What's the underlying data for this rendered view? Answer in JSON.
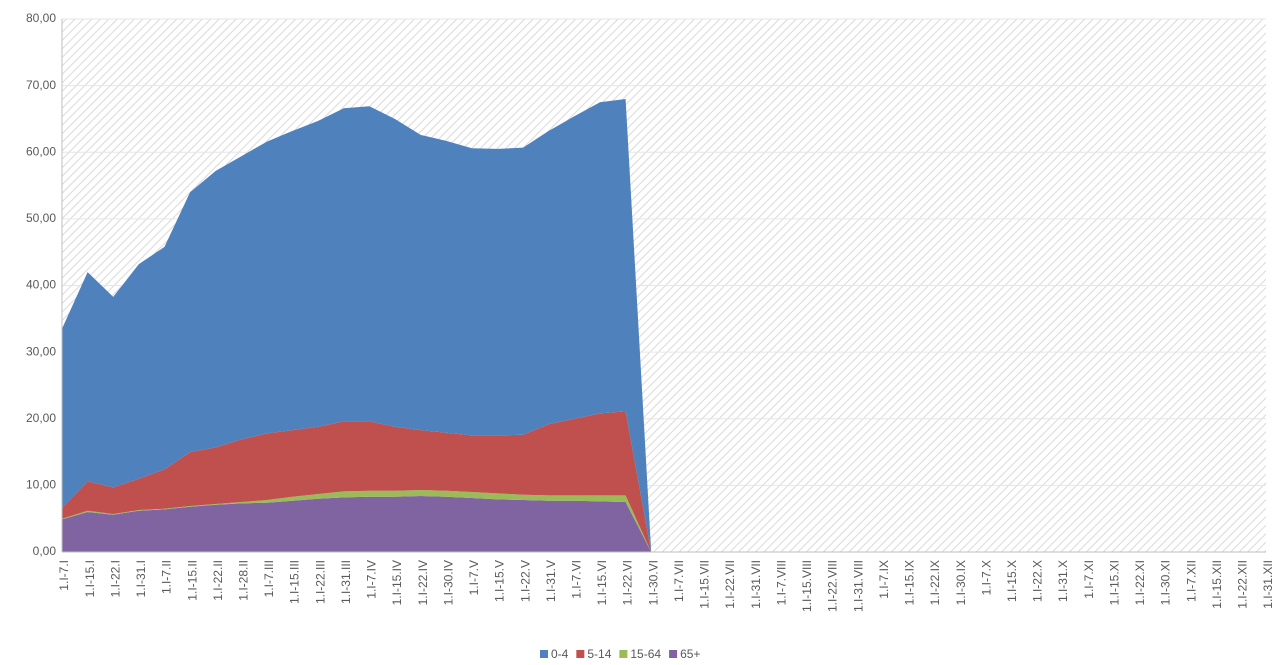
{
  "chart_data": {
    "type": "stacked_area",
    "categories": [
      "1.I-7.I",
      "1.I-15.I",
      "1.I-22.I",
      "1.I-31.I",
      "1.I-7.II",
      "1.I-15.II",
      "1.I-22.II",
      "1.I-28.II",
      "1.I-7.III",
      "1.I-15.III",
      "1.I-22.III",
      "1.I-31.III",
      "1.I-7.IV",
      "1.I-15.IV",
      "1.I-22.IV",
      "1.I-30.IV",
      "1.I-7.V",
      "1.I-15.V",
      "1.I-22.V",
      "1.I-31.V",
      "1.I-7.VI",
      "1.I-15.VI",
      "1.I-22.VI",
      "1.I-30.VI",
      "1.I-7.VII",
      "1.I-15.VII",
      "1.I-22.VII",
      "1.I-31.VII",
      "1.I-7.VIII",
      "1.I-15.VIII",
      "1.I-22.VIII",
      "1.I-31.VIII",
      "1.I-7.IX",
      "1.I-15.IX",
      "1.I-22.IX",
      "1.I-30.IX",
      "1.I-7.X",
      "1.I-15.X",
      "1.I-22.X",
      "1.I-31.X",
      "1.I-7.XI",
      "1.I-15.XI",
      "1.I-22.XI",
      "1.I-30.XI",
      "1.I-7.XII",
      "1.I-15.XII",
      "1.I-22.XII",
      "1.I-31.XII"
    ],
    "series": [
      {
        "name": "65+",
        "color": "#8064a2",
        "values": [
          4.9,
          6.0,
          5.6,
          6.2,
          6.4,
          6.8,
          7.1,
          7.3,
          7.4,
          7.7,
          8.0,
          8.2,
          8.3,
          8.3,
          8.4,
          8.3,
          8.1,
          7.9,
          7.8,
          7.7,
          7.7,
          7.6,
          7.5,
          0,
          null,
          null,
          null,
          null,
          null,
          null,
          null,
          null,
          null,
          null,
          null,
          null,
          null,
          null,
          null,
          null,
          null,
          null,
          null,
          null,
          null,
          null,
          null,
          null
        ]
      },
      {
        "name": "15-64",
        "color": "#9bbb59",
        "values": [
          0.1,
          0.2,
          0.1,
          0.1,
          0.1,
          0.1,
          0.1,
          0.2,
          0.4,
          0.6,
          0.7,
          0.9,
          0.9,
          0.9,
          0.9,
          0.9,
          0.9,
          0.9,
          0.8,
          0.8,
          0.8,
          0.9,
          1.0,
          0,
          null,
          null,
          null,
          null,
          null,
          null,
          null,
          null,
          null,
          null,
          null,
          null,
          null,
          null,
          null,
          null,
          null,
          null,
          null,
          null,
          null,
          null,
          null,
          null
        ]
      },
      {
        "name": "5-14",
        "color": "#c0504d",
        "values": [
          1.6,
          4.4,
          4.0,
          4.7,
          5.9,
          8.1,
          8.5,
          9.4,
          10.0,
          10.0,
          10.1,
          10.5,
          10.4,
          9.6,
          9.0,
          8.7,
          8.5,
          8.7,
          9.0,
          10.7,
          11.5,
          12.3,
          12.6,
          0,
          null,
          null,
          null,
          null,
          null,
          null,
          null,
          null,
          null,
          null,
          null,
          null,
          null,
          null,
          null,
          null,
          null,
          null,
          null,
          null,
          null,
          null,
          null,
          null
        ]
      },
      {
        "name": "0-4",
        "color": "#4f81bd",
        "values": [
          26.9,
          31.4,
          28.6,
          32.2,
          33.4,
          39.0,
          41.5,
          42.5,
          43.8,
          44.9,
          45.9,
          47.0,
          47.3,
          46.2,
          44.3,
          43.8,
          43.1,
          43.0,
          43.1,
          44.0,
          45.4,
          46.7,
          46.9,
          0,
          null,
          null,
          null,
          null,
          null,
          null,
          null,
          null,
          null,
          null,
          null,
          null,
          null,
          null,
          null,
          null,
          null,
          null,
          null,
          null,
          null,
          null,
          null,
          null
        ]
      }
    ],
    "legend_order": [
      "0-4",
      "5-14",
      "15-64",
      "65+"
    ],
    "ylim": [
      0,
      80
    ],
    "yticks": [
      {
        "value": 0,
        "label": "0,00"
      },
      {
        "value": 10,
        "label": "10,00"
      },
      {
        "value": 20,
        "label": "20,00"
      },
      {
        "value": 30,
        "label": "30,00"
      },
      {
        "value": 40,
        "label": "40,00"
      },
      {
        "value": 50,
        "label": "50,00"
      },
      {
        "value": 60,
        "label": "60,00"
      },
      {
        "value": 70,
        "label": "70,00"
      },
      {
        "value": 80,
        "label": "80,00"
      }
    ],
    "grid": true
  }
}
